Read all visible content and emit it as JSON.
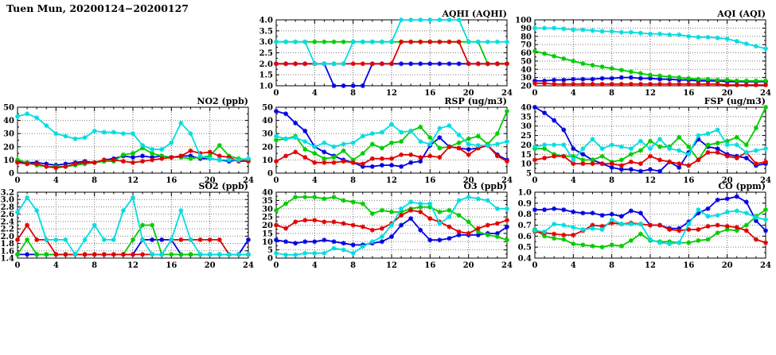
{
  "page": {
    "title": "Tuen Mun, 20200124−20200127"
  },
  "colors": {
    "blue": "#0000e0",
    "green": "#00cc00",
    "red": "#e00000",
    "cyan": "#00dde0",
    "axis": "#000000",
    "grid": "#808080"
  },
  "chart_data": [
    {
      "type": "line",
      "title": "AQHI (AQHI)",
      "col": 1,
      "row": 0,
      "xlim": [
        0,
        24
      ],
      "x_ticks": [
        0,
        4,
        8,
        12,
        16,
        20,
        24
      ],
      "ylim": [
        1.0,
        4.0
      ],
      "ytick_step": 0.5,
      "y_decimals": 1,
      "grid": true,
      "legend": "none",
      "series": {
        "blue": [
          2,
          2,
          2,
          2,
          2,
          2,
          1,
          1,
          1,
          1,
          2,
          2,
          2,
          2,
          2,
          2,
          2,
          2,
          2,
          2,
          2,
          2,
          2,
          2,
          2
        ],
        "green": [
          3,
          3,
          3,
          3,
          3,
          3,
          3,
          3,
          3,
          3,
          3,
          3,
          3,
          3,
          3,
          3,
          3,
          3,
          3,
          3,
          3,
          3,
          2,
          2,
          2
        ],
        "red": [
          2,
          2,
          2,
          2,
          2,
          2,
          2,
          2,
          2,
          2,
          2,
          2,
          2,
          3,
          3,
          3,
          3,
          3,
          3,
          3,
          2,
          2,
          2,
          2,
          2
        ],
        "cyan": [
          3,
          3,
          3,
          3,
          2,
          2,
          2,
          2,
          3,
          3,
          3,
          3,
          3,
          4,
          4,
          4,
          4,
          4,
          4,
          4,
          3,
          3,
          3,
          3,
          3
        ]
      }
    },
    {
      "type": "line",
      "title": "AQI (AQI)",
      "col": 2,
      "row": 0,
      "xlim": [
        0,
        24
      ],
      "x_ticks": [
        0,
        4,
        8,
        12,
        16,
        20,
        24
      ],
      "ylim": [
        20,
        100
      ],
      "ytick_step": 10,
      "y_decimals": 0,
      "grid": true,
      "legend": "none",
      "series": {
        "blue": [
          26,
          26,
          27,
          27,
          28,
          28,
          28,
          29,
          29,
          30,
          30,
          29,
          29,
          28,
          28,
          27,
          27,
          26,
          26,
          26,
          25,
          25,
          25,
          25,
          25
        ],
        "green": [
          62,
          59,
          56,
          53,
          50,
          47,
          45,
          43,
          41,
          39,
          37,
          35,
          33,
          32,
          31,
          30,
          29,
          28,
          28,
          27,
          27,
          26,
          26,
          26,
          26
        ],
        "red": [
          23,
          23,
          22,
          22,
          22,
          22,
          22,
          22,
          22,
          22,
          22,
          22,
          22,
          22,
          22,
          22,
          22,
          22,
          22,
          22,
          21,
          21,
          21,
          21,
          21
        ],
        "cyan": [
          90,
          90,
          90,
          89,
          88,
          88,
          87,
          86,
          86,
          85,
          85,
          84,
          83,
          83,
          82,
          82,
          80,
          79,
          79,
          78,
          77,
          74,
          71,
          68,
          65
        ]
      }
    },
    {
      "type": "line",
      "title": "NO2 (ppb)",
      "col": 0,
      "row": 1,
      "xlim": [
        0,
        24
      ],
      "x_ticks": [
        0,
        4,
        8,
        12,
        16,
        20,
        24
      ],
      "ylim": [
        0,
        50
      ],
      "ytick_step": 10,
      "y_decimals": 0,
      "grid": true,
      "legend": "none",
      "series": {
        "blue": [
          9,
          8,
          8,
          7,
          6,
          7,
          8,
          9,
          8,
          10,
          11,
          13,
          12,
          13,
          12,
          13,
          12,
          13,
          13,
          11,
          11,
          10,
          9,
          10,
          10
        ],
        "green": [
          10,
          8,
          6,
          5,
          5,
          5,
          6,
          7,
          8,
          9,
          9,
          14,
          15,
          19,
          15,
          13,
          12,
          12,
          11,
          12,
          13,
          21,
          13,
          11,
          10
        ],
        "red": [
          8,
          7,
          7,
          5,
          4,
          5,
          7,
          8,
          8,
          10,
          10,
          9,
          8,
          9,
          10,
          11,
          12,
          13,
          17,
          15,
          16,
          13,
          12,
          9,
          9
        ],
        "cyan": [
          43,
          45,
          42,
          36,
          30,
          28,
          26,
          27,
          32,
          31,
          31,
          30,
          30,
          21,
          18,
          18,
          23,
          38,
          30,
          13,
          11,
          10,
          10,
          10,
          11
        ]
      }
    },
    {
      "type": "line",
      "title": "RSP (ug/m3)",
      "col": 1,
      "row": 1,
      "xlim": [
        0,
        24
      ],
      "x_ticks": [
        0,
        4,
        8,
        12,
        16,
        20,
        24
      ],
      "ylim": [
        0,
        50
      ],
      "ytick_step": 10,
      "y_decimals": 0,
      "grid": true,
      "legend": "none",
      "series": {
        "blue": [
          47,
          45,
          38,
          32,
          20,
          16,
          13,
          10,
          8,
          5,
          5,
          6,
          6,
          5,
          8,
          9,
          21,
          27,
          20,
          19,
          18,
          19,
          21,
          14,
          10
        ],
        "green": [
          25,
          26,
          28,
          18,
          15,
          11,
          12,
          17,
          10,
          15,
          22,
          19,
          23,
          24,
          32,
          35,
          27,
          19,
          20,
          23,
          26,
          28,
          22,
          30,
          47
        ],
        "red": [
          9,
          13,
          16,
          12,
          8,
          8,
          8,
          9,
          8,
          7,
          11,
          11,
          11,
          14,
          14,
          12,
          13,
          12,
          20,
          19,
          14,
          19,
          21,
          13,
          9
        ],
        "cyan": [
          28,
          26,
          27,
          24,
          20,
          23,
          20,
          22,
          23,
          28,
          30,
          31,
          37,
          31,
          32,
          24,
          22,
          34,
          36,
          29,
          22,
          21,
          21,
          22,
          24
        ]
      }
    },
    {
      "type": "line",
      "title": "FSP (ug/m3)",
      "col": 2,
      "row": 1,
      "xlim": [
        0,
        24
      ],
      "x_ticks": [
        0,
        4,
        8,
        12,
        16,
        20,
        24
      ],
      "ylim": [
        5,
        40
      ],
      "ytick_step": 5,
      "y_decimals": 0,
      "grid": true,
      "legend": "none",
      "series": {
        "blue": [
          40,
          37,
          33,
          28,
          18,
          15,
          12,
          10,
          8,
          7,
          7,
          6,
          7,
          6,
          11,
          8,
          16,
          23,
          19,
          18,
          15,
          14,
          13,
          9,
          10
        ],
        "green": [
          18,
          18,
          15,
          14,
          14,
          12,
          12,
          14,
          11,
          12,
          15,
          17,
          22,
          19,
          19,
          24,
          19,
          12,
          20,
          21,
          22,
          24,
          20,
          29,
          40
        ],
        "red": [
          12,
          13,
          14,
          14,
          10,
          10,
          10,
          10,
          10,
          9,
          11,
          10,
          14,
          12,
          11,
          10,
          9,
          12,
          16,
          16,
          14,
          13,
          16,
          10,
          11
        ],
        "cyan": [
          19,
          20,
          20,
          20,
          12,
          18,
          23,
          18,
          20,
          19,
          18,
          22,
          18,
          23,
          18,
          17,
          15,
          25,
          26,
          28,
          20,
          20,
          16,
          17,
          18
        ]
      }
    },
    {
      "type": "line",
      "title": "SO2 (ppb)",
      "col": 0,
      "row": 2,
      "xlim": [
        0,
        24
      ],
      "x_ticks": [
        0,
        4,
        8,
        12,
        16,
        20,
        24
      ],
      "ylim": [
        1.4,
        3.2
      ],
      "ytick_step": 0.2,
      "y_decimals": 1,
      "grid": true,
      "legend": "none",
      "series": {
        "blue": [
          1.5,
          1.5,
          1.5,
          1.5,
          1.5,
          1.5,
          1.5,
          1.5,
          1.5,
          1.5,
          1.5,
          1.5,
          1.5,
          1.9,
          1.9,
          1.9,
          1.9,
          1.5,
          1.5,
          1.5,
          1.5,
          1.5,
          1.5,
          1.5,
          1.9
        ],
        "green": [
          1.5,
          1.9,
          1.5,
          1.5,
          1.5,
          1.5,
          1.5,
          1.5,
          1.5,
          1.5,
          1.5,
          1.5,
          1.9,
          2.3,
          2.3,
          1.5,
          1.5,
          1.5,
          1.5,
          1.5,
          1.5,
          1.5,
          1.5,
          1.5,
          1.5
        ],
        "red": [
          1.9,
          2.3,
          1.9,
          1.9,
          1.5,
          1.5,
          1.5,
          1.5,
          1.5,
          1.5,
          1.5,
          1.5,
          1.5,
          1.5,
          1.5,
          1.5,
          1.9,
          1.9,
          1.9,
          1.9,
          1.9,
          1.9,
          1.5,
          1.5,
          1.5
        ],
        "cyan": [
          2.65,
          3.05,
          2.7,
          1.9,
          1.9,
          1.9,
          1.5,
          1.9,
          2.3,
          1.9,
          1.9,
          2.7,
          3.05,
          1.9,
          1.5,
          1.5,
          1.9,
          2.7,
          1.9,
          1.5,
          1.5,
          1.5,
          1.5,
          1.5,
          1.5
        ]
      }
    },
    {
      "type": "line",
      "title": "O3 (ppb)",
      "col": 1,
      "row": 2,
      "xlim": [
        0,
        24
      ],
      "x_ticks": [
        0,
        4,
        8,
        12,
        16,
        20,
        24
      ],
      "ylim": [
        0,
        40
      ],
      "ytick_step": 5,
      "y_decimals": 0,
      "grid": true,
      "legend": "none",
      "series": {
        "blue": [
          11,
          10,
          9,
          10,
          10,
          11,
          10,
          9,
          8,
          8,
          9,
          10,
          13,
          20,
          24,
          17,
          11,
          11,
          12,
          14,
          14,
          14,
          15,
          15,
          19
        ],
        "green": [
          29,
          33,
          37,
          37,
          37,
          36,
          37,
          35,
          34,
          33,
          27,
          29,
          28,
          28,
          30,
          31,
          31,
          28,
          29,
          26,
          22,
          16,
          14,
          13,
          11
        ],
        "red": [
          20,
          18,
          22,
          23,
          23,
          22,
          22,
          21,
          20,
          19,
          17,
          18,
          21,
          26,
          29,
          28,
          24,
          22,
          19,
          16,
          15,
          18,
          20,
          21,
          23
        ],
        "cyan": [
          3,
          2,
          2,
          3,
          3,
          3,
          6,
          5,
          3,
          7,
          10,
          13,
          20,
          30,
          34,
          33,
          33,
          21,
          25,
          35,
          37,
          36,
          35,
          30,
          30
        ]
      }
    },
    {
      "type": "line",
      "title": "CO (ppm)",
      "col": 2,
      "row": 2,
      "xlim": [
        0,
        24
      ],
      "x_ticks": [
        0,
        4,
        8,
        12,
        16,
        20,
        24
      ],
      "ylim": [
        0.4,
        1.0
      ],
      "ytick_step": 0.1,
      "y_decimals": 1,
      "grid": true,
      "legend": "none",
      "series": {
        "blue": [
          0.84,
          0.84,
          0.85,
          0.84,
          0.82,
          0.81,
          0.81,
          0.79,
          0.8,
          0.78,
          0.83,
          0.81,
          0.7,
          0.7,
          0.67,
          0.67,
          0.73,
          0.81,
          0.85,
          0.93,
          0.94,
          0.96,
          0.91,
          0.74,
          0.65
        ],
        "green": [
          0.66,
          0.6,
          0.58,
          0.57,
          0.53,
          0.52,
          0.51,
          0.5,
          0.52,
          0.51,
          0.56,
          0.62,
          0.56,
          0.55,
          0.55,
          0.54,
          0.54,
          0.56,
          0.57,
          0.63,
          0.66,
          0.65,
          0.7,
          0.78,
          0.84
        ],
        "red": [
          0.64,
          0.63,
          0.62,
          0.61,
          0.61,
          0.65,
          0.7,
          0.69,
          0.72,
          0.71,
          0.72,
          0.71,
          0.7,
          0.7,
          0.66,
          0.65,
          0.66,
          0.66,
          0.69,
          0.7,
          0.69,
          0.68,
          0.65,
          0.57,
          0.54
        ],
        "cyan": [
          0.65,
          0.64,
          0.71,
          0.7,
          0.68,
          0.66,
          0.67,
          0.66,
          0.75,
          0.71,
          0.71,
          0.71,
          0.57,
          0.54,
          0.53,
          0.54,
          0.71,
          0.84,
          0.78,
          0.79,
          0.82,
          0.83,
          0.81,
          0.77,
          0.75
        ]
      }
    }
  ]
}
